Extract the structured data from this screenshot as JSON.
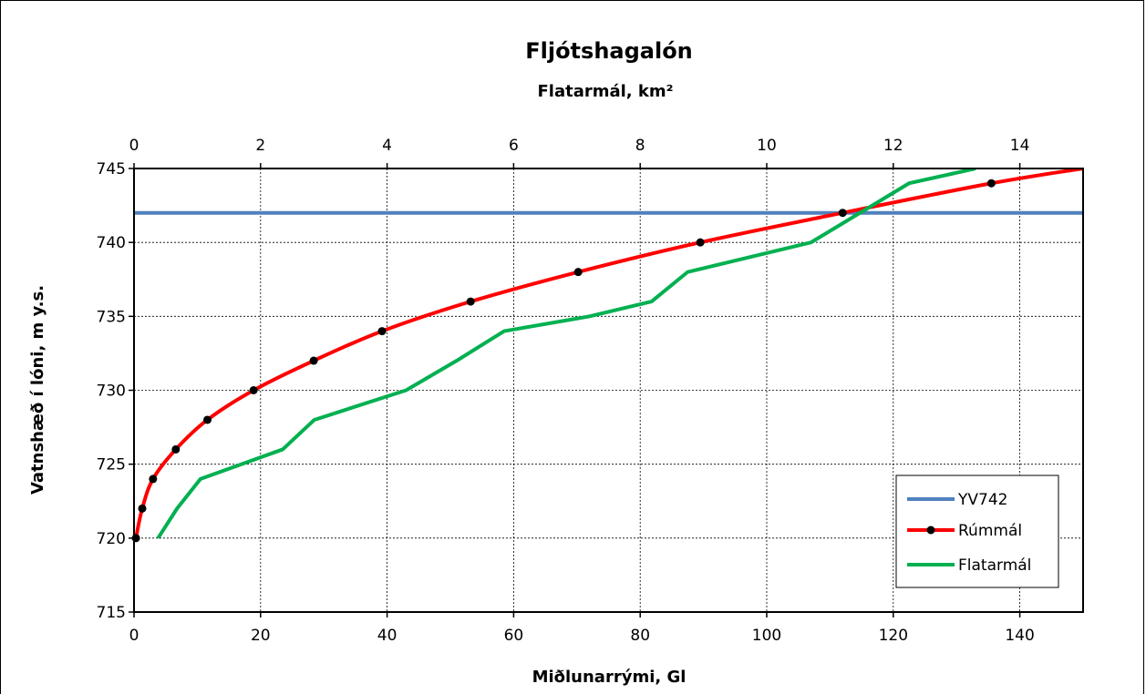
{
  "chart_data": {
    "type": "line",
    "title": "Fljótshagalón",
    "top_xlabel": "Flatarmál, km²",
    "xlabel": "Miðlunarrými, Gl",
    "ylabel": "Vatnshæð í lóni, m y.s.",
    "xlim": [
      0,
      150
    ],
    "x_ticks": [
      0,
      20,
      40,
      60,
      80,
      100,
      120,
      140
    ],
    "x2lim": [
      0,
      15
    ],
    "x2_ticks": [
      0,
      2,
      4,
      6,
      8,
      10,
      12,
      14
    ],
    "ylim": [
      715,
      745
    ],
    "y_ticks": [
      715,
      720,
      725,
      730,
      735,
      740,
      745
    ],
    "grid": true,
    "legend_position": "bottom-right",
    "series": [
      {
        "name": "YV742",
        "color": "#4f81bd",
        "axis": "bottom",
        "markers": false,
        "points": [
          [
            0,
            742
          ],
          [
            150,
            742
          ]
        ]
      },
      {
        "name": "Rúmmál",
        "color": "#ff0000",
        "axis": "bottom",
        "markers": true,
        "points": [
          [
            0.3,
            720
          ],
          [
            1.3,
            722
          ],
          [
            3.0,
            724
          ],
          [
            6.6,
            726
          ],
          [
            11.6,
            728
          ],
          [
            18.9,
            730
          ],
          [
            28.4,
            732
          ],
          [
            39.2,
            734
          ],
          [
            53.2,
            736
          ],
          [
            70.2,
            738
          ],
          [
            89.5,
            740
          ],
          [
            112.0,
            742
          ],
          [
            135.5,
            744
          ],
          [
            150.0,
            745
          ]
        ]
      },
      {
        "name": "Flatarmál",
        "color": "#00b050",
        "axis": "top",
        "markers": false,
        "points": [
          [
            0.38,
            720
          ],
          [
            0.68,
            722
          ],
          [
            1.05,
            724
          ],
          [
            2.35,
            726
          ],
          [
            2.85,
            728
          ],
          [
            4.3,
            730
          ],
          [
            5.1,
            732
          ],
          [
            5.85,
            734
          ],
          [
            7.2,
            735
          ],
          [
            8.18,
            736
          ],
          [
            8.75,
            738
          ],
          [
            10.7,
            740
          ],
          [
            12.25,
            744
          ],
          [
            13.3,
            745
          ]
        ]
      }
    ]
  }
}
